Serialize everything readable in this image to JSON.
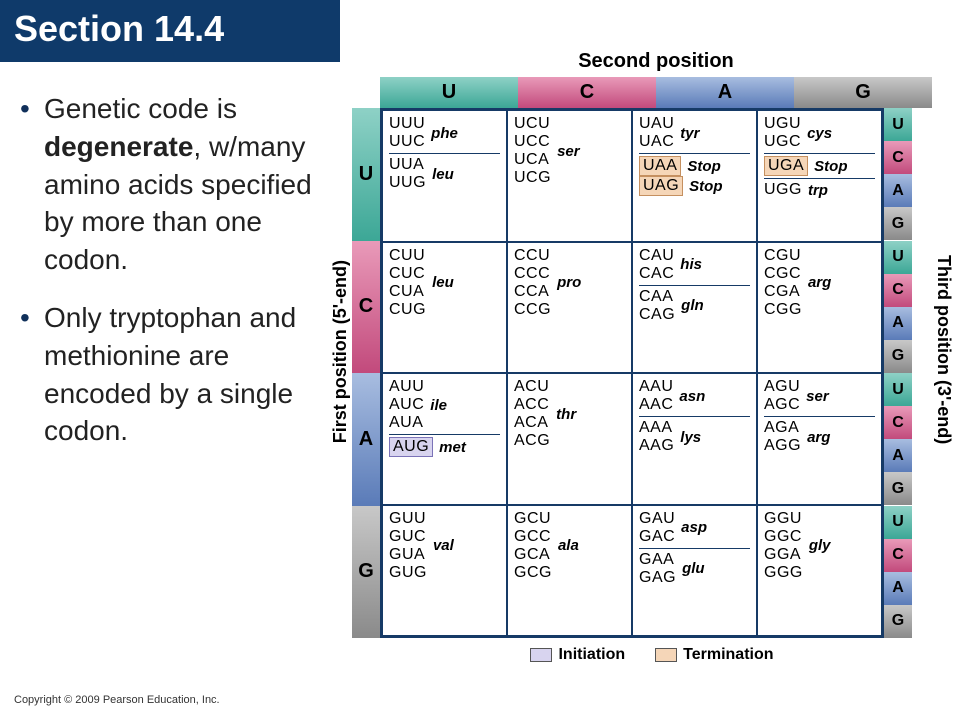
{
  "title": "Section 14.4",
  "bullets": [
    {
      "pre": "Genetic code is ",
      "bold": "degenerate",
      "post": ", w/many amino acids specified by more than one codon."
    },
    {
      "pre": "Only tryptophan and methionine are encoded by a single codon.",
      "bold": "",
      "post": ""
    }
  ],
  "copyright": "Copyright © 2009 Pearson Education, Inc.",
  "labels": {
    "second": "Second position",
    "first": "First position (5'-end)",
    "third": "Third position (3'-end)"
  },
  "headers": {
    "cols": [
      "U",
      "C",
      "A",
      "G"
    ],
    "rows": [
      "U",
      "C",
      "A",
      "G"
    ],
    "right": [
      "U",
      "C",
      "A",
      "G"
    ]
  },
  "colors": {
    "U": "#3ca796",
    "C": "#c24a7c",
    "A": "#5a7bb8",
    "G": "#8a8a8a",
    "border": "#163a66",
    "init": "#d8d4ef",
    "term": "#f5d6b8"
  },
  "legend": {
    "init": "Initiation",
    "term": "Termination"
  },
  "cells": [
    [
      {
        "groups": [
          {
            "codons": [
              "UUU",
              "UUC"
            ],
            "aa": "phe"
          },
          {
            "codons": [
              "UUA",
              "UUG"
            ],
            "aa": "leu",
            "div": true
          }
        ]
      },
      {
        "groups": [
          {
            "codons": [
              "UCU",
              "UCC",
              "UCA",
              "UCG"
            ],
            "aa": "ser"
          }
        ]
      },
      {
        "groups": [
          {
            "codons": [
              "UAU",
              "UAC"
            ],
            "aa": "tyr"
          },
          {
            "codons": [
              "UAA"
            ],
            "aa": "Stop",
            "hl": "term",
            "div": true
          },
          {
            "codons": [
              "UAG"
            ],
            "aa": "Stop",
            "hl": "term"
          }
        ]
      },
      {
        "groups": [
          {
            "codons": [
              "UGU",
              "UGC"
            ],
            "aa": "cys"
          },
          {
            "codons": [
              "UGA"
            ],
            "aa": "Stop",
            "hl": "term",
            "div": true
          },
          {
            "codons": [
              "UGG"
            ],
            "aa": "trp",
            "div": true
          }
        ]
      }
    ],
    [
      {
        "groups": [
          {
            "codons": [
              "CUU",
              "CUC",
              "CUA",
              "CUG"
            ],
            "aa": "leu"
          }
        ]
      },
      {
        "groups": [
          {
            "codons": [
              "CCU",
              "CCC",
              "CCA",
              "CCG"
            ],
            "aa": "pro"
          }
        ]
      },
      {
        "groups": [
          {
            "codons": [
              "CAU",
              "CAC"
            ],
            "aa": "his"
          },
          {
            "codons": [
              "CAA",
              "CAG"
            ],
            "aa": "gln",
            "div": true
          }
        ]
      },
      {
        "groups": [
          {
            "codons": [
              "CGU",
              "CGC",
              "CGA",
              "CGG"
            ],
            "aa": "arg"
          }
        ]
      }
    ],
    [
      {
        "groups": [
          {
            "codons": [
              "AUU",
              "AUC",
              "AUA"
            ],
            "aa": "ile"
          },
          {
            "codons": [
              "AUG"
            ],
            "aa": "met",
            "hl": "init",
            "div": true
          }
        ]
      },
      {
        "groups": [
          {
            "codons": [
              "ACU",
              "ACC",
              "ACA",
              "ACG"
            ],
            "aa": "thr"
          }
        ]
      },
      {
        "groups": [
          {
            "codons": [
              "AAU",
              "AAC"
            ],
            "aa": "asn"
          },
          {
            "codons": [
              "AAA",
              "AAG"
            ],
            "aa": "lys",
            "div": true
          }
        ]
      },
      {
        "groups": [
          {
            "codons": [
              "AGU",
              "AGC"
            ],
            "aa": "ser"
          },
          {
            "codons": [
              "AGA",
              "AGG"
            ],
            "aa": "arg",
            "div": true
          }
        ]
      }
    ],
    [
      {
        "groups": [
          {
            "codons": [
              "GUU",
              "GUC",
              "GUA",
              "GUG"
            ],
            "aa": "val"
          }
        ]
      },
      {
        "groups": [
          {
            "codons": [
              "GCU",
              "GCC",
              "GCA",
              "GCG"
            ],
            "aa": "ala"
          }
        ]
      },
      {
        "groups": [
          {
            "codons": [
              "GAU",
              "GAC"
            ],
            "aa": "asp"
          },
          {
            "codons": [
              "GAA",
              "GAG"
            ],
            "aa": "glu",
            "div": true
          }
        ]
      },
      {
        "groups": [
          {
            "codons": [
              "GGU",
              "GGC",
              "GGA",
              "GGG"
            ],
            "aa": "gly"
          }
        ]
      }
    ]
  ]
}
